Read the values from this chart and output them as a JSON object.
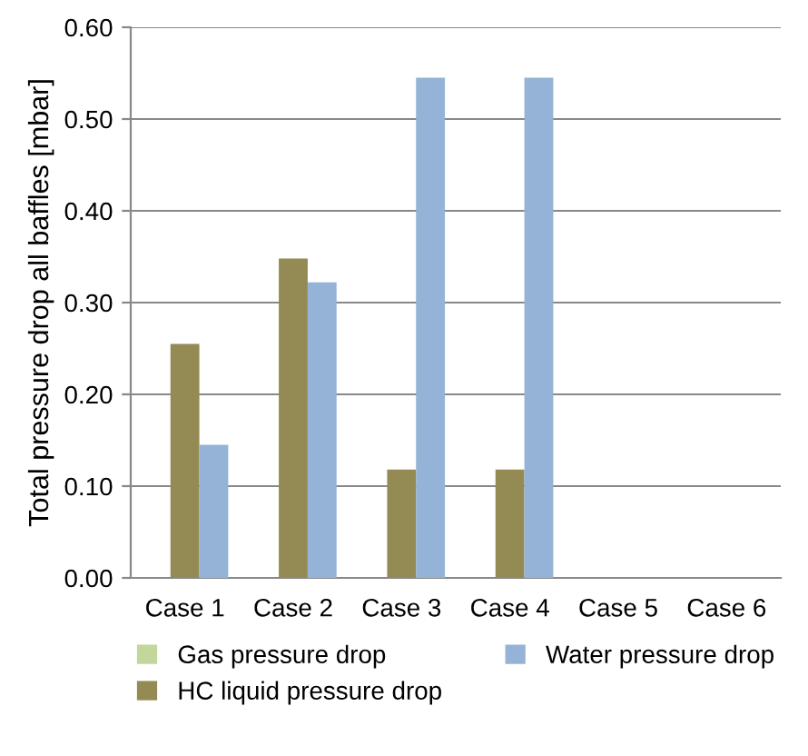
{
  "chart_data": {
    "type": "bar",
    "ylabel": "Total pressure drop all baffles [mbar]",
    "categories": [
      "Case 1",
      "Case 2",
      "Case 3",
      "Case 4",
      "Case 5",
      "Case 6"
    ],
    "series": [
      {
        "name": "Gas pressure drop",
        "color": "#c3d69b",
        "values": [
          0,
          0,
          0,
          0,
          0,
          0
        ]
      },
      {
        "name": "HC liquid pressure drop",
        "color": "#948a54",
        "values": [
          0.255,
          0.348,
          0.118,
          0.118,
          0,
          0
        ]
      },
      {
        "name": "Water pressure drop",
        "color": "#95b3d7",
        "values": [
          0.145,
          0.322,
          0.545,
          0.545,
          0,
          0
        ]
      }
    ],
    "ylim": [
      0,
      0.6
    ],
    "yticks": [
      {
        "value": 0,
        "label": "0.00"
      },
      {
        "value": 0.1,
        "label": "0.10"
      },
      {
        "value": 0.2,
        "label": "0.20"
      },
      {
        "value": 0.3,
        "label": "0.30"
      },
      {
        "value": 0.4,
        "label": "0.40"
      },
      {
        "value": 0.5,
        "label": "0.50"
      },
      {
        "value": 0.6,
        "label": "0.60"
      }
    ],
    "grid": "y",
    "legend": "bottom"
  }
}
